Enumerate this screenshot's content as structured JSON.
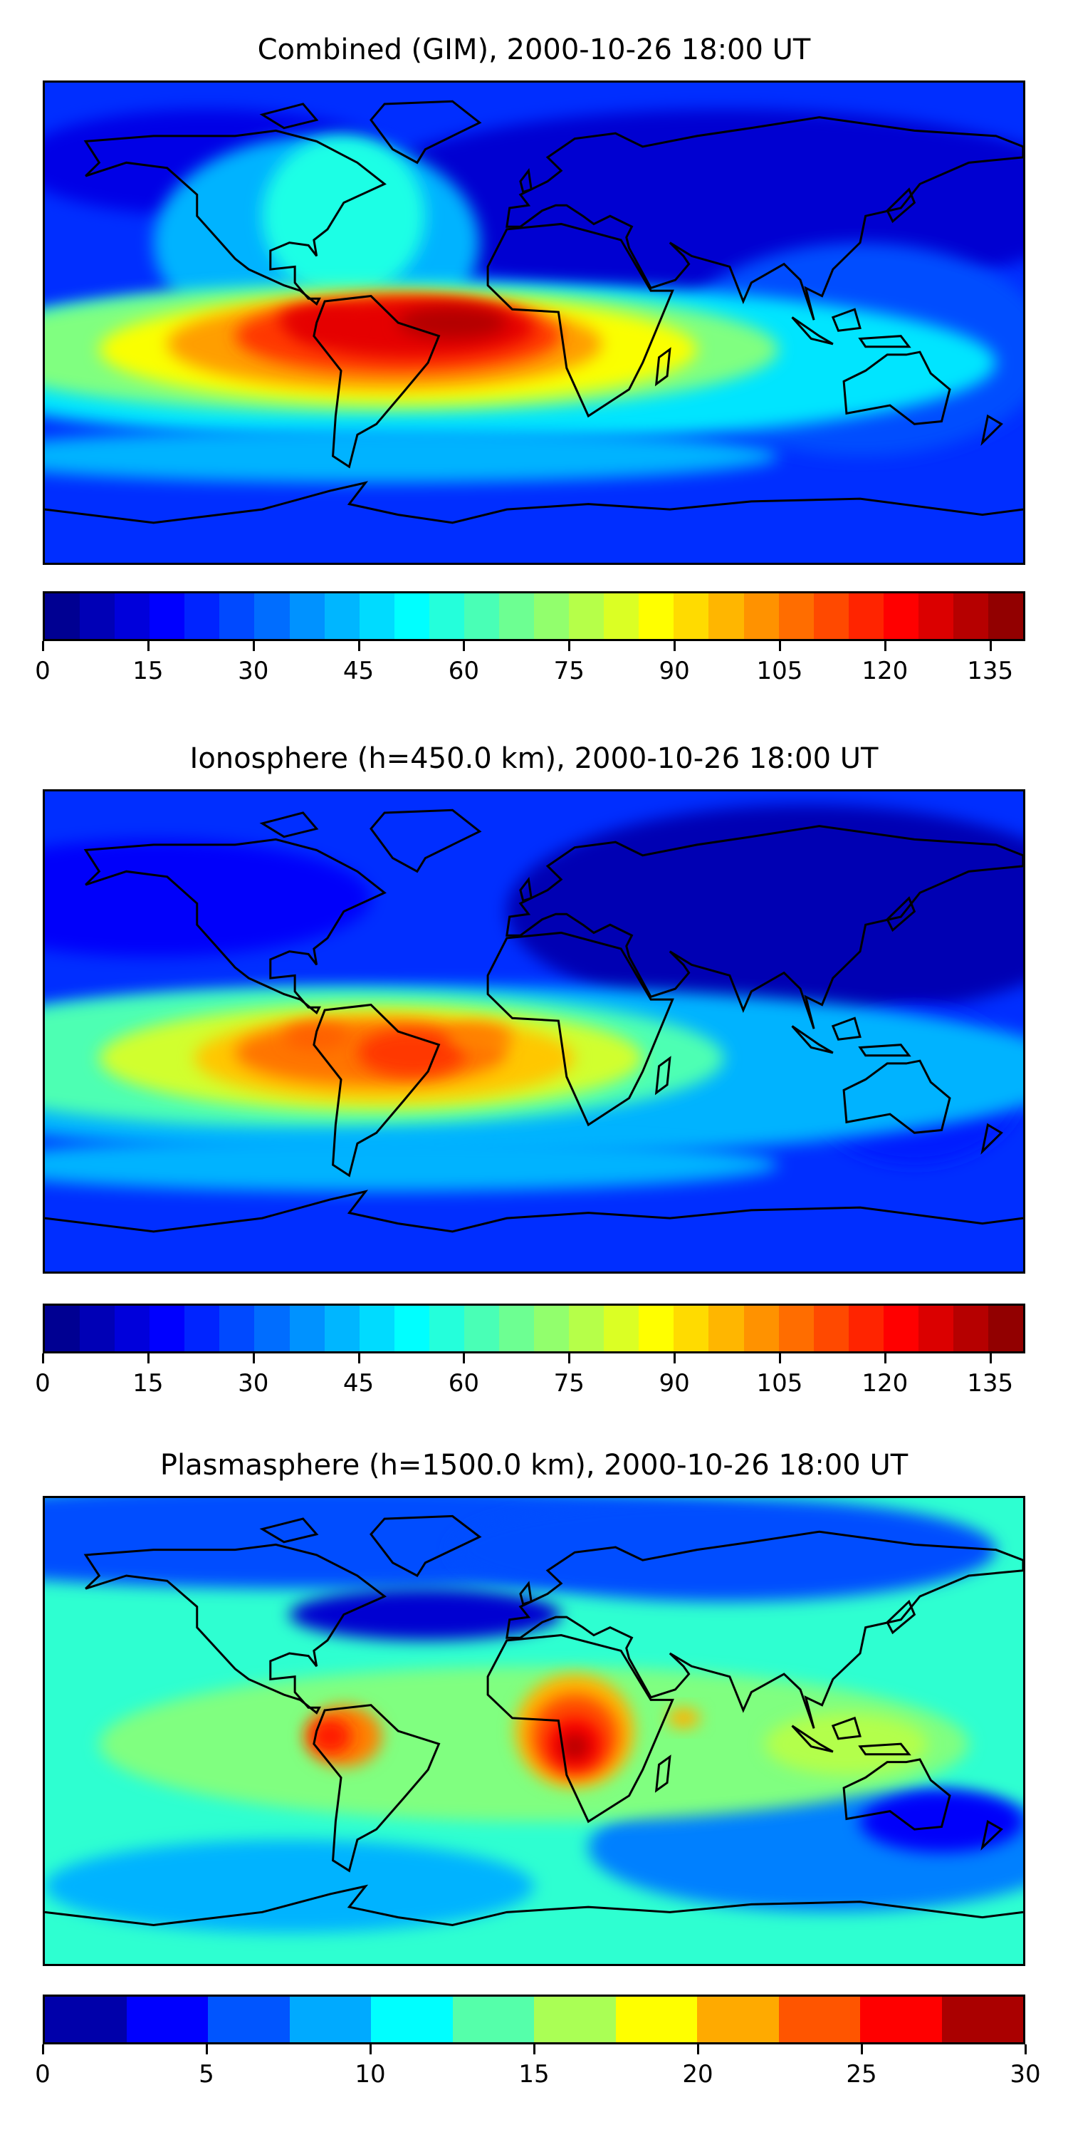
{
  "chart_data": [
    {
      "type": "heatmap",
      "title": "Combined (GIM), 2000-10-26 18:00 UT",
      "projection": "plate carree, global",
      "colormap": "jet",
      "levels": {
        "min": 0,
        "max": 140,
        "step": 5
      },
      "colorbar_ticks": [
        0,
        15,
        30,
        45,
        60,
        75,
        90,
        105,
        120,
        135
      ],
      "features": "maximum ~130 over northern South America / equatorial Atlantic (lon -70 to -20); crest band ~60-90 across Pacific at lat ~0 to -20; minima ~5-15 over northern Asia and polar regions"
    },
    {
      "type": "heatmap",
      "title": "Ionosphere  (h=450.0 km), 2000-10-26 18:00 UT",
      "projection": "plate carree, global",
      "colormap": "jet",
      "levels": {
        "min": 0,
        "max": 140,
        "step": 5
      },
      "colorbar_ticks": [
        0,
        15,
        30,
        45,
        60,
        75,
        90,
        105,
        120,
        135
      ],
      "features": "maximum ~110 over Brazil; secondary ~95 over eastern Pacific and Atlantic near lat -10; minima ~5 over Siberia and western Pacific"
    },
    {
      "type": "heatmap",
      "title": "Plasmasphere (h=1500.0 km), 2000-10-26 18:00 UT",
      "projection": "plate carree, global",
      "colormap": "jet",
      "levels": {
        "min": 0,
        "max": 30,
        "step": 2.5
      },
      "colorbar_ticks": [
        0,
        5,
        10,
        15,
        20,
        25,
        30
      ],
      "features": "maxima ~27 over central Africa and ~25 over northwestern South America; background ~12-15 at low latitudes; minima ~2-5 at high northern latitudes and southern Indian Ocean"
    }
  ]
}
